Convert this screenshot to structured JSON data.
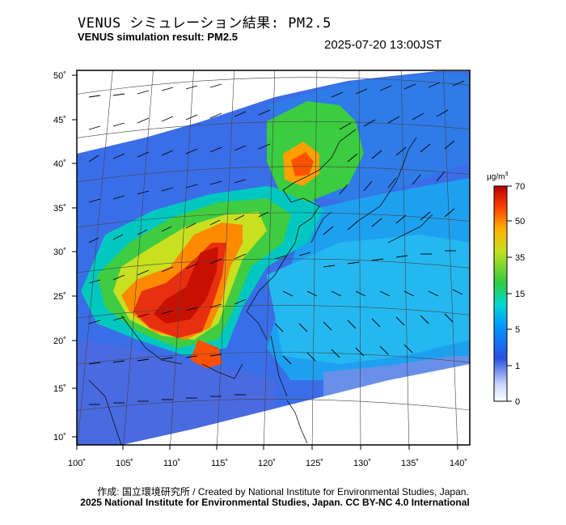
{
  "header": {
    "title_jp": "VENUS シミュレーション結果: PM2.5",
    "title_en": "VENUS simulation result: PM2.5",
    "timestamp": "2025-07-20 13:00JST"
  },
  "axes": {
    "lat_labels": [
      "50˚",
      "45˚",
      "40˚",
      "35˚",
      "30˚",
      "25˚",
      "20˚",
      "15˚",
      "10˚"
    ],
    "lon_labels": [
      "100˚",
      "105˚",
      "110˚",
      "115˚",
      "120˚",
      "125˚",
      "130˚",
      "135˚",
      "140˚"
    ]
  },
  "colorbar": {
    "unit": "μg/m",
    "unit_sup": "3",
    "ticks": [
      "70",
      "50",
      "35",
      "15",
      "5",
      "1",
      "0"
    ],
    "colors": [
      "#ffffff",
      "#1e5ad6",
      "#00aaff",
      "#00e0c0",
      "#40d040",
      "#c0e020",
      "#ffb000",
      "#ff5000",
      "#c00000"
    ]
  },
  "credits": {
    "line1": "作成: 国立環境研究所 / Created by National Institute for Environmental Studies, Japan.",
    "line2": "2025 National Institute for Environmental Studies, Japan. CC BY-NC 4.0 International"
  }
}
